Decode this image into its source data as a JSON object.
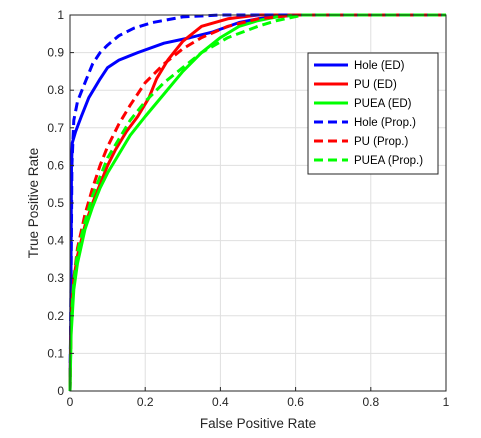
{
  "chart_data": {
    "type": "line",
    "title": "",
    "xlabel": "False Positive Rate",
    "ylabel": "True Positive Rate",
    "xlim": [
      0,
      1
    ],
    "ylim": [
      0,
      1
    ],
    "xticks": [
      "0",
      "0.2",
      "0.4",
      "0.6",
      "0.8",
      "1"
    ],
    "yticks": [
      "0",
      "0.1",
      "0.2",
      "0.3",
      "0.4",
      "0.5",
      "0.6",
      "0.7",
      "0.8",
      "0.9",
      "1"
    ],
    "grid": true,
    "legend_position": "upper-right",
    "series": [
      {
        "name": "Hole (ED)",
        "color": "#0000ff",
        "dash": "solid",
        "points": [
          [
            0,
            0
          ],
          [
            0.002,
            0.2
          ],
          [
            0.003,
            0.4
          ],
          [
            0.004,
            0.6
          ],
          [
            0.006,
            0.66
          ],
          [
            0.015,
            0.69
          ],
          [
            0.03,
            0.73
          ],
          [
            0.05,
            0.78
          ],
          [
            0.08,
            0.83
          ],
          [
            0.1,
            0.86
          ],
          [
            0.13,
            0.88
          ],
          [
            0.18,
            0.9
          ],
          [
            0.25,
            0.925
          ],
          [
            0.32,
            0.94
          ],
          [
            0.38,
            0.955
          ],
          [
            0.45,
            0.98
          ],
          [
            0.5,
            0.99
          ],
          [
            0.6,
            1
          ],
          [
            1,
            1
          ]
        ]
      },
      {
        "name": "PU (ED)",
        "color": "#ff0000",
        "dash": "solid",
        "points": [
          [
            0,
            0
          ],
          [
            0.003,
            0.2
          ],
          [
            0.01,
            0.3
          ],
          [
            0.02,
            0.36
          ],
          [
            0.04,
            0.44
          ],
          [
            0.06,
            0.5
          ],
          [
            0.08,
            0.55
          ],
          [
            0.1,
            0.6
          ],
          [
            0.12,
            0.64
          ],
          [
            0.15,
            0.69
          ],
          [
            0.18,
            0.73
          ],
          [
            0.21,
            0.78
          ],
          [
            0.23,
            0.83
          ],
          [
            0.26,
            0.88
          ],
          [
            0.3,
            0.93
          ],
          [
            0.35,
            0.97
          ],
          [
            0.42,
            0.99
          ],
          [
            0.5,
            1
          ],
          [
            1,
            1
          ]
        ]
      },
      {
        "name": "PUEA (ED)",
        "color": "#00ff00",
        "dash": "solid",
        "points": [
          [
            0,
            0
          ],
          [
            0.003,
            0.15
          ],
          [
            0.01,
            0.27
          ],
          [
            0.02,
            0.34
          ],
          [
            0.04,
            0.43
          ],
          [
            0.06,
            0.49
          ],
          [
            0.08,
            0.54
          ],
          [
            0.1,
            0.58
          ],
          [
            0.13,
            0.63
          ],
          [
            0.16,
            0.68
          ],
          [
            0.2,
            0.73
          ],
          [
            0.25,
            0.79
          ],
          [
            0.3,
            0.85
          ],
          [
            0.35,
            0.9
          ],
          [
            0.4,
            0.94
          ],
          [
            0.45,
            0.97
          ],
          [
            0.5,
            0.985
          ],
          [
            0.55,
            0.995
          ],
          [
            0.6,
            1
          ],
          [
            1,
            1
          ]
        ]
      },
      {
        "name": "Hole (Prop.)",
        "color": "#0000ff",
        "dash": "dashed",
        "points": [
          [
            0,
            0
          ],
          [
            0.003,
            0.3
          ],
          [
            0.005,
            0.6
          ],
          [
            0.01,
            0.72
          ],
          [
            0.02,
            0.77
          ],
          [
            0.04,
            0.82
          ],
          [
            0.06,
            0.87
          ],
          [
            0.08,
            0.9
          ],
          [
            0.1,
            0.92
          ],
          [
            0.13,
            0.945
          ],
          [
            0.17,
            0.965
          ],
          [
            0.22,
            0.98
          ],
          [
            0.3,
            0.995
          ],
          [
            0.4,
            1
          ],
          [
            1,
            1
          ]
        ]
      },
      {
        "name": "PU (Prop.)",
        "color": "#ff0000",
        "dash": "dashed",
        "points": [
          [
            0,
            0
          ],
          [
            0.003,
            0.2
          ],
          [
            0.01,
            0.3
          ],
          [
            0.02,
            0.38
          ],
          [
            0.04,
            0.47
          ],
          [
            0.06,
            0.54
          ],
          [
            0.08,
            0.6
          ],
          [
            0.1,
            0.65
          ],
          [
            0.13,
            0.71
          ],
          [
            0.16,
            0.76
          ],
          [
            0.2,
            0.82
          ],
          [
            0.25,
            0.87
          ],
          [
            0.3,
            0.91
          ],
          [
            0.35,
            0.94
          ],
          [
            0.42,
            0.97
          ],
          [
            0.5,
            0.99
          ],
          [
            0.6,
            1
          ],
          [
            1,
            1
          ]
        ]
      },
      {
        "name": "PUEA (Prop.)",
        "color": "#00ff00",
        "dash": "dashed",
        "points": [
          [
            0,
            0
          ],
          [
            0.003,
            0.18
          ],
          [
            0.01,
            0.29
          ],
          [
            0.02,
            0.37
          ],
          [
            0.04,
            0.45
          ],
          [
            0.06,
            0.52
          ],
          [
            0.08,
            0.57
          ],
          [
            0.1,
            0.62
          ],
          [
            0.13,
            0.67
          ],
          [
            0.16,
            0.72
          ],
          [
            0.2,
            0.77
          ],
          [
            0.25,
            0.82
          ],
          [
            0.3,
            0.86
          ],
          [
            0.35,
            0.9
          ],
          [
            0.42,
            0.94
          ],
          [
            0.5,
            0.97
          ],
          [
            0.55,
            0.985
          ],
          [
            0.62,
            1
          ],
          [
            1,
            1
          ]
        ]
      }
    ]
  }
}
